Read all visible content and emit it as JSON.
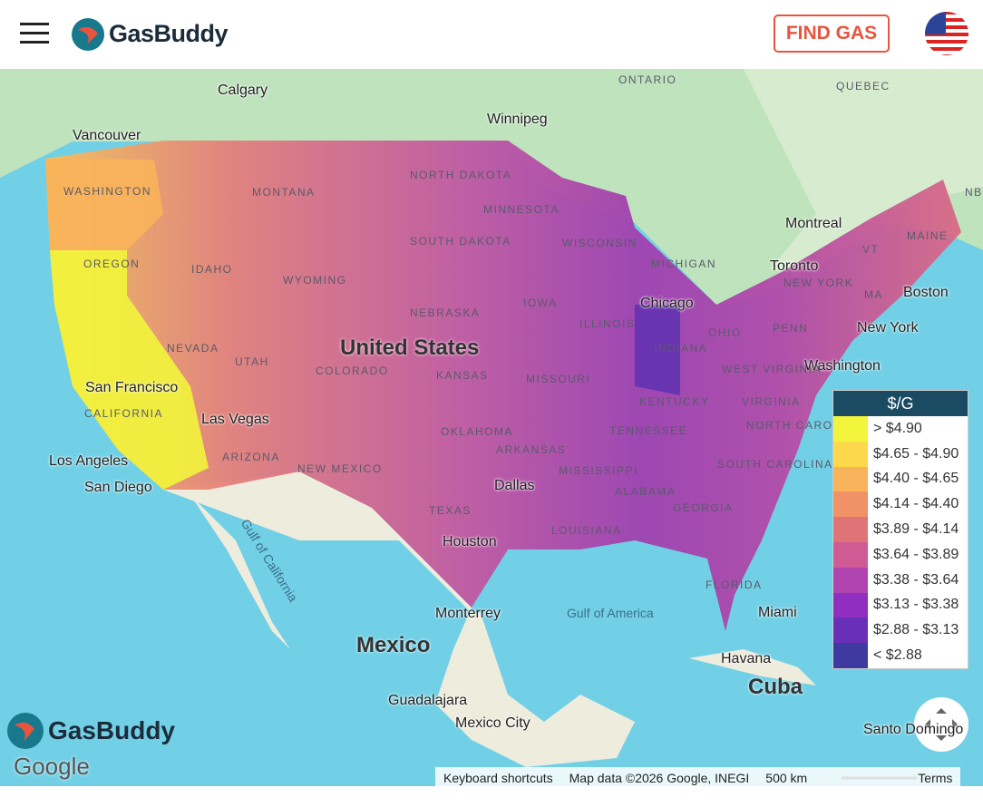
{
  "header": {
    "brand": "GasBuddy",
    "find_gas": "FIND GAS"
  },
  "map": {
    "cities": [
      "Calgary",
      "Winnipeg",
      "Vancouver",
      "Montreal",
      "Toronto",
      "Boston",
      "New York",
      "Washington",
      "Chicago",
      "San Francisco",
      "Las Vegas",
      "Los Angeles",
      "San Diego",
      "Dallas",
      "Houston",
      "Miami",
      "Monterrey",
      "Havana",
      "Guadalajara",
      "Mexico City",
      "Santo Domingo"
    ],
    "regions": [
      "ONTARIO",
      "QUEBEC",
      "NB",
      "WASHINGTON",
      "MONTANA",
      "NORTH DAKOTA",
      "MINNESOTA",
      "OREGON",
      "IDAHO",
      "SOUTH DAKOTA",
      "WISCONSIN",
      "MICHIGAN",
      "WYOMING",
      "IOWA",
      "NEBRASKA",
      "NEVADA",
      "UTAH",
      "COLORADO",
      "KANSAS",
      "MISSOURI",
      "ILLINOIS",
      "INDIANA",
      "OHIO",
      "PENN",
      "NEW YORK",
      "VT",
      "MAINE",
      "MA",
      "WEST VIRGINIA",
      "VIRGINIA",
      "KENTUCKY",
      "CALIFORNIA",
      "ARIZONA",
      "NEW MEXICO",
      "OKLAHOMA",
      "TENNESSEE",
      "NORTH CAROLINA",
      "SOUTH CAROLINA",
      "ARKANSAS",
      "TEXAS",
      "MISSISSIPPI",
      "ALABAMA",
      "GEORGIA",
      "LOUISIANA",
      "FLORIDA"
    ],
    "countries": [
      "United States",
      "Mexico",
      "Cuba"
    ],
    "water": [
      "Gulf of California",
      "Gulf of America"
    ]
  },
  "legend": {
    "title": "$/G",
    "entries": [
      {
        "label": "> $4.90",
        "color": "#f2f53b"
      },
      {
        "label": "$4.65 - $4.90",
        "color": "#fbd94a"
      },
      {
        "label": "$4.40 - $4.65",
        "color": "#f9b35a"
      },
      {
        "label": "$4.14 - $4.40",
        "color": "#f19266"
      },
      {
        "label": "$3.89 - $4.14",
        "color": "#e07378"
      },
      {
        "label": "$3.64 - $3.89",
        "color": "#cf5a94"
      },
      {
        "label": "$3.38 - $3.64",
        "color": "#b044b0"
      },
      {
        "label": "$3.13 - $3.38",
        "color": "#8f2ec0"
      },
      {
        "label": "$2.88 - $3.13",
        "color": "#6a2fb8"
      },
      {
        "label": "< $2.88",
        "color": "#3f3aa0"
      }
    ]
  },
  "footer": {
    "logo": "GasBuddy",
    "google": "Google",
    "shortcuts": "Keyboard shortcuts",
    "map_data": "Map data ©2026 Google, INEGI",
    "scale": "500 km",
    "terms": "Terms"
  }
}
